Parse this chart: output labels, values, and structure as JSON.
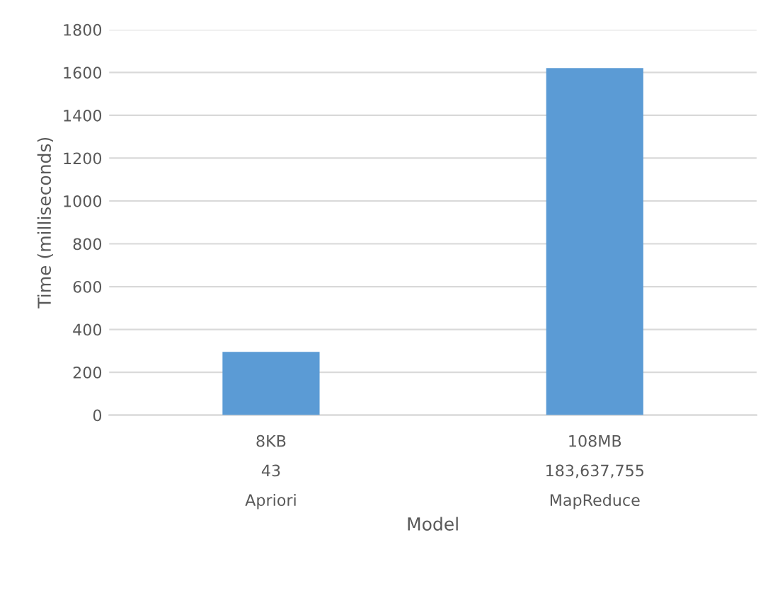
{
  "chart_data": {
    "type": "bar",
    "xlabel": "Model",
    "ylabel": "Time (milliseconds)",
    "categories": [
      "8KB\n43\nApriori",
      "108MB\n183,637,755\nMapReduce"
    ],
    "series": [
      {
        "color": "#5b9bd5",
        "values": [
          295,
          1620
        ]
      }
    ],
    "ylim": [
      0,
      1800
    ],
    "yticks": [
      0,
      200,
      400,
      600,
      800,
      1000,
      1200,
      1400,
      1600,
      1800
    ],
    "grid": "y",
    "legend": false
  }
}
